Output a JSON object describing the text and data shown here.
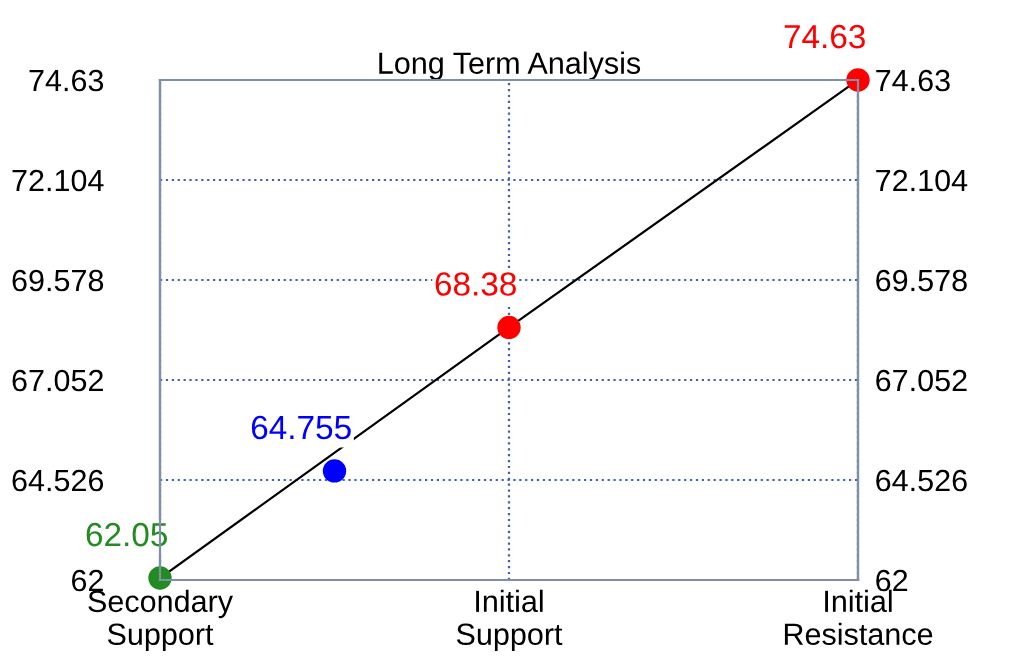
{
  "chart_data": {
    "type": "line",
    "title": "Long Term Analysis",
    "categories": [
      "Secondary\nSupport",
      null,
      "Initial\nSupport",
      null,
      "Initial\nResistance"
    ],
    "ylim": [
      62,
      74.63
    ],
    "yticks": [
      62,
      64.526,
      67.052,
      69.578,
      72.104,
      74.63
    ],
    "y2lim": [
      62,
      74.63
    ],
    "y2ticks": [
      62,
      64.526,
      67.052,
      69.578,
      72.104,
      74.63
    ],
    "series": [
      {
        "color": "#000000",
        "values": [
          62.05,
          null,
          68.38,
          null,
          74.63
        ],
        "colors": [
          "#228b22",
          null,
          "#ff0000",
          null,
          "#ff0000"
        ],
        "marker": "circle"
      },
      {
        "type": "scatter",
        "values": [
          null,
          64.755,
          null,
          null,
          null
        ],
        "color": "#0000ff",
        "marker": "circle"
      }
    ],
    "data_labels": true,
    "grid": true
  }
}
